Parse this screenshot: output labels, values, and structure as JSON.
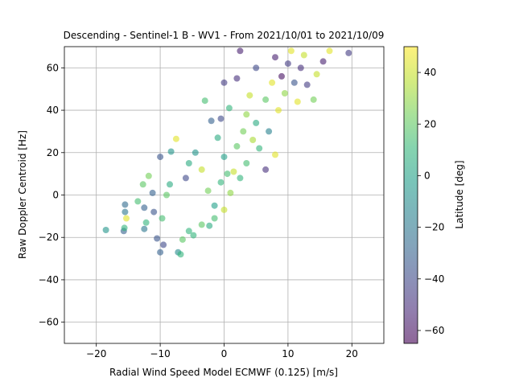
{
  "chart_data": {
    "type": "scatter",
    "title": "Descending - Sentinel-1 B - WV1 - From 2021/10/01 to 2021/10/09",
    "xlabel": "Radial Wind Speed Model ECMWF (0.125) [m/s]",
    "ylabel": "Raw Doppler Centroid [Hz]",
    "xlim": [
      -25,
      25
    ],
    "ylim": [
      -70,
      70
    ],
    "xticks": [
      "−20",
      "−10",
      "0",
      "10",
      "20"
    ],
    "xtick_values": [
      -20,
      -10,
      0,
      10,
      20
    ],
    "yticks": [
      "−60",
      "−40",
      "−20",
      "0",
      "20",
      "40",
      "60"
    ],
    "ytick_values": [
      -60,
      -40,
      -20,
      0,
      20,
      40,
      60
    ],
    "grid": true,
    "marker_alpha": 0.6,
    "colormap": "viridis",
    "colorbar": {
      "label": "Latitude [deg]",
      "range": [
        -65,
        50
      ],
      "ticks": [
        "−60",
        "−40",
        "−20",
        "0",
        "20",
        "40"
      ],
      "tick_values": [
        -60,
        -40,
        -20,
        0,
        20,
        40
      ]
    },
    "colors": {
      "viridis_stops": [
        "#440154",
        "#482878",
        "#3e4989",
        "#31688e",
        "#26828e",
        "#1f9e89",
        "#35b779",
        "#6ece58",
        "#b5de2b",
        "#fde725"
      ]
    },
    "series": [
      {
        "points": [
          [
            -18.5,
            -16.5,
            -5
          ],
          [
            -15.7,
            -17,
            -30
          ],
          [
            -15.5,
            -4.5,
            -25
          ],
          [
            -15.5,
            -8,
            -20
          ],
          [
            -15.3,
            -11,
            45
          ],
          [
            -15.6,
            -15.5,
            10
          ],
          [
            -13.5,
            -3,
            15
          ],
          [
            -12.7,
            5,
            20
          ],
          [
            -12.2,
            -13,
            10
          ],
          [
            -12.5,
            -6,
            -30
          ],
          [
            -12.5,
            -16,
            -20
          ],
          [
            -11.8,
            9,
            25
          ],
          [
            -11.2,
            1,
            -30
          ],
          [
            -11,
            -8,
            -35
          ],
          [
            -10.5,
            -20.5,
            -35
          ],
          [
            -10,
            -27,
            -30
          ],
          [
            -10,
            18,
            -35
          ],
          [
            -9.5,
            -23.5,
            -40
          ],
          [
            -9.7,
            -11,
            15
          ],
          [
            -9,
            0,
            20
          ],
          [
            -8.5,
            5,
            5
          ],
          [
            -8.3,
            20.5,
            -5
          ],
          [
            -7.5,
            26.5,
            45
          ],
          [
            -7.2,
            -27,
            -10
          ],
          [
            -6.8,
            -28,
            10
          ],
          [
            -6.5,
            -21,
            20
          ],
          [
            -5.5,
            -17,
            10
          ],
          [
            -6,
            8,
            -40
          ],
          [
            -5.5,
            15,
            5
          ],
          [
            -4.5,
            20,
            -5
          ],
          [
            -4.8,
            -19,
            10
          ],
          [
            -3.5,
            -14,
            20
          ],
          [
            -3,
            44.5,
            15
          ],
          [
            -3.5,
            12,
            40
          ],
          [
            -2.5,
            2,
            25
          ],
          [
            -2,
            35,
            -30
          ],
          [
            -2.3,
            -14.5,
            5
          ],
          [
            -1.5,
            -11,
            15
          ],
          [
            -1.5,
            -5,
            0
          ],
          [
            -1,
            27,
            5
          ],
          [
            -0.5,
            36,
            -40
          ],
          [
            -0.5,
            6,
            10
          ],
          [
            0,
            -7,
            40
          ],
          [
            0,
            18,
            0
          ],
          [
            0,
            53,
            -45
          ],
          [
            0.5,
            10,
            15
          ],
          [
            0.8,
            41,
            10
          ],
          [
            1,
            1,
            30
          ],
          [
            1.5,
            11,
            40
          ],
          [
            2,
            23,
            20
          ],
          [
            2.5,
            8,
            10
          ],
          [
            2,
            55,
            -50
          ],
          [
            2.5,
            68,
            -55
          ],
          [
            3,
            30,
            25
          ],
          [
            3.5,
            38,
            30
          ],
          [
            3.5,
            15,
            15
          ],
          [
            4,
            47,
            40
          ],
          [
            4.5,
            26,
            35
          ],
          [
            5,
            60,
            -40
          ],
          [
            5,
            34,
            5
          ],
          [
            5.5,
            22,
            10
          ],
          [
            6.5,
            12,
            -50
          ],
          [
            6.5,
            45,
            20
          ],
          [
            7,
            30,
            -15
          ],
          [
            7.5,
            53,
            45
          ],
          [
            8,
            19,
            45
          ],
          [
            8,
            65,
            -55
          ],
          [
            8.5,
            40,
            45
          ],
          [
            9,
            56,
            -60
          ],
          [
            9.5,
            48,
            30
          ],
          [
            10,
            62,
            -45
          ],
          [
            10.5,
            68,
            45
          ],
          [
            11,
            53,
            -35
          ],
          [
            11.5,
            44,
            45
          ],
          [
            12,
            60,
            -50
          ],
          [
            12.5,
            66,
            40
          ],
          [
            13,
            52,
            -45
          ],
          [
            14,
            45,
            25
          ],
          [
            14.5,
            57,
            40
          ],
          [
            15.5,
            63,
            -55
          ],
          [
            16.5,
            68,
            45
          ],
          [
            19.5,
            67,
            -45
          ]
        ]
      }
    ]
  }
}
